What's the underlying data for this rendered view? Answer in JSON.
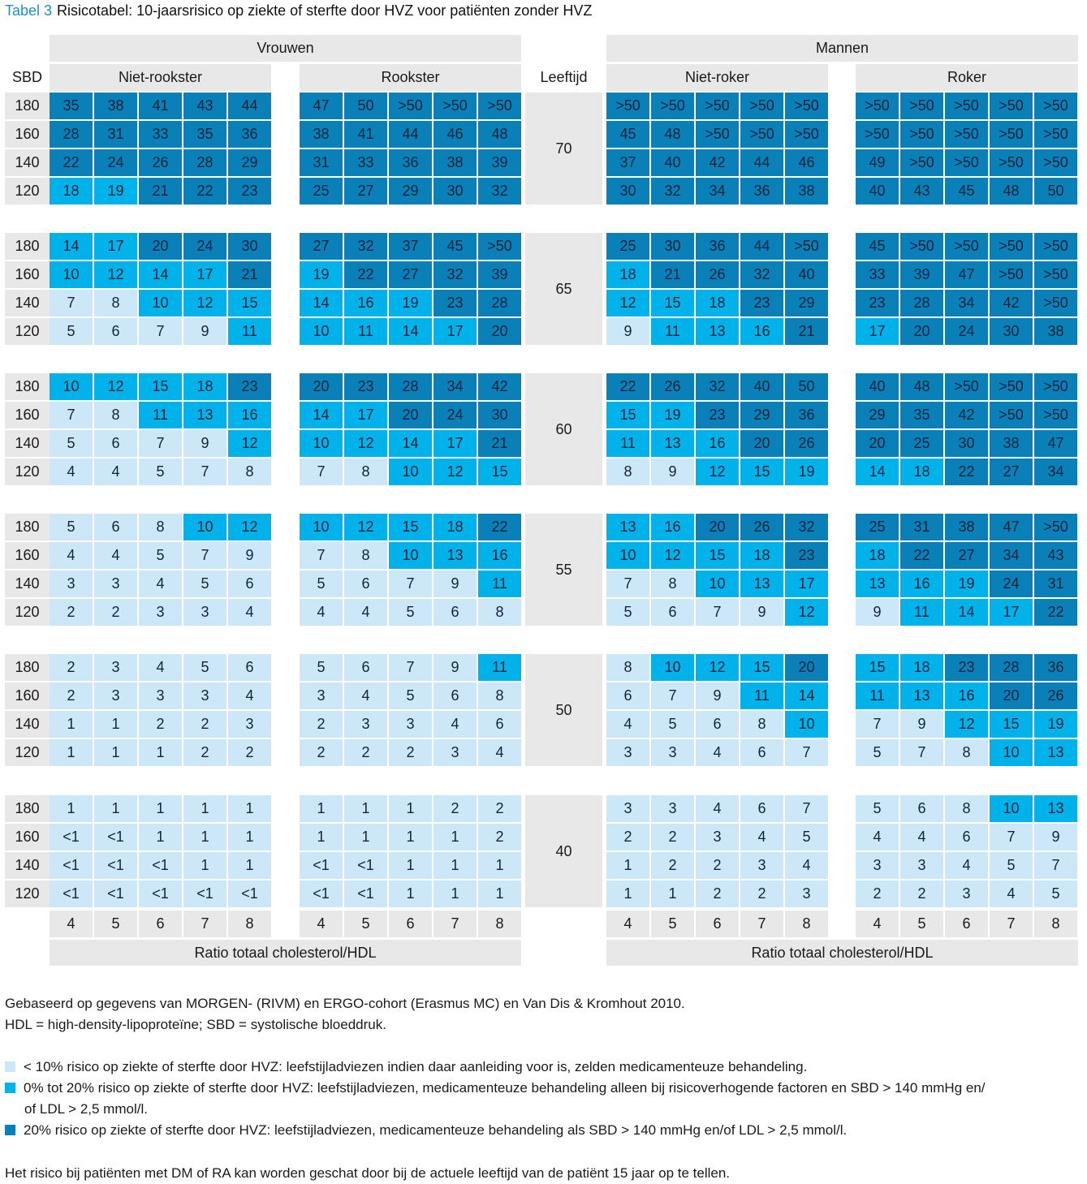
{
  "title": {
    "label": "Tabel 3",
    "text": "Risicotabel: 10-jaarsrisico op ziekte of sterfte door HVZ voor patiënten zonder HVZ"
  },
  "headers": {
    "women": "Vrouwen",
    "men": "Mannen",
    "sbd": "SBD",
    "age": "Leeftijd",
    "women_nonsmoker": "Niet-rookster",
    "women_smoker": "Rookster",
    "men_nonsmoker": "Niet-roker",
    "men_smoker": "Roker",
    "ratio_label_left": "Ratio totaal cholesterol/HDL",
    "ratio_label_right": "Ratio totaal cholesterol/HDL"
  },
  "ratios": [
    "4",
    "5",
    "6",
    "7",
    "8"
  ],
  "sbd_values": [
    "180",
    "160",
    "140",
    "120"
  ],
  "colors": {
    "low": "#cce8f8",
    "mid": "#00b2ea",
    "high": "#0a80b8",
    "header_gray": "#e8e8e8",
    "title_blue": "#1e8fc7"
  },
  "age_blocks": [
    {
      "age": "70",
      "women_nonsmoker": [
        [
          "35",
          "38",
          "41",
          "43",
          "44"
        ],
        [
          "28",
          "31",
          "33",
          "35",
          "36"
        ],
        [
          "22",
          "24",
          "26",
          "28",
          "29"
        ],
        [
          "18",
          "19",
          "21",
          "22",
          "23"
        ]
      ],
      "women_smoker": [
        [
          "47",
          "50",
          ">50",
          ">50",
          ">50"
        ],
        [
          "38",
          "41",
          "44",
          "46",
          "48"
        ],
        [
          "31",
          "33",
          "36",
          "38",
          "39"
        ],
        [
          "25",
          "27",
          "29",
          "30",
          "32"
        ]
      ],
      "men_nonsmoker": [
        [
          ">50",
          ">50",
          ">50",
          ">50",
          ">50"
        ],
        [
          "45",
          "48",
          ">50",
          ">50",
          ">50"
        ],
        [
          "37",
          "40",
          "42",
          "44",
          "46"
        ],
        [
          "30",
          "32",
          "34",
          "36",
          "38"
        ]
      ],
      "men_smoker": [
        [
          ">50",
          ">50",
          ">50",
          ">50",
          ">50"
        ],
        [
          ">50",
          ">50",
          ">50",
          ">50",
          ">50"
        ],
        [
          "49",
          ">50",
          ">50",
          ">50",
          ">50"
        ],
        [
          "40",
          "43",
          "45",
          "48",
          "50"
        ]
      ]
    },
    {
      "age": "65",
      "women_nonsmoker": [
        [
          "14",
          "17",
          "20",
          "24",
          "30"
        ],
        [
          "10",
          "12",
          "14",
          "17",
          "21"
        ],
        [
          "7",
          "8",
          "10",
          "12",
          "15"
        ],
        [
          "5",
          "6",
          "7",
          "9",
          "11"
        ]
      ],
      "women_smoker": [
        [
          "27",
          "32",
          "37",
          "45",
          ">50"
        ],
        [
          "19",
          "22",
          "27",
          "32",
          "39"
        ],
        [
          "14",
          "16",
          "19",
          "23",
          "28"
        ],
        [
          "10",
          "11",
          "14",
          "17",
          "20"
        ]
      ],
      "men_nonsmoker": [
        [
          "25",
          "30",
          "36",
          "44",
          ">50"
        ],
        [
          "18",
          "21",
          "26",
          "32",
          "40"
        ],
        [
          "12",
          "15",
          "18",
          "23",
          "29"
        ],
        [
          "9",
          "11",
          "13",
          "16",
          "21"
        ]
      ],
      "men_smoker": [
        [
          "45",
          ">50",
          ">50",
          ">50",
          ">50"
        ],
        [
          "33",
          "39",
          "47",
          ">50",
          ">50"
        ],
        [
          "23",
          "28",
          "34",
          "42",
          ">50"
        ],
        [
          "17",
          "20",
          "24",
          "30",
          "38"
        ]
      ]
    },
    {
      "age": "60",
      "women_nonsmoker": [
        [
          "10",
          "12",
          "15",
          "18",
          "23"
        ],
        [
          "7",
          "8",
          "11",
          "13",
          "16"
        ],
        [
          "5",
          "6",
          "7",
          "9",
          "12"
        ],
        [
          "4",
          "4",
          "5",
          "7",
          "8"
        ]
      ],
      "women_smoker": [
        [
          "20",
          "23",
          "28",
          "34",
          "42"
        ],
        [
          "14",
          "17",
          "20",
          "24",
          "30"
        ],
        [
          "10",
          "12",
          "14",
          "17",
          "21"
        ],
        [
          "7",
          "8",
          "10",
          "12",
          "15"
        ]
      ],
      "men_nonsmoker": [
        [
          "22",
          "26",
          "32",
          "40",
          "50"
        ],
        [
          "15",
          "19",
          "23",
          "29",
          "36"
        ],
        [
          "11",
          "13",
          "16",
          "20",
          "26"
        ],
        [
          "8",
          "9",
          "12",
          "15",
          "19"
        ]
      ],
      "men_smoker": [
        [
          "40",
          "48",
          ">50",
          ">50",
          ">50"
        ],
        [
          "29",
          "35",
          "42",
          ">50",
          ">50"
        ],
        [
          "20",
          "25",
          "30",
          "38",
          "47"
        ],
        [
          "14",
          "18",
          "22",
          "27",
          "34"
        ]
      ]
    },
    {
      "age": "55",
      "women_nonsmoker": [
        [
          "5",
          "6",
          "8",
          "10",
          "12"
        ],
        [
          "4",
          "4",
          "5",
          "7",
          "9"
        ],
        [
          "3",
          "3",
          "4",
          "5",
          "6"
        ],
        [
          "2",
          "2",
          "3",
          "3",
          "4"
        ]
      ],
      "women_smoker": [
        [
          "10",
          "12",
          "15",
          "18",
          "22"
        ],
        [
          "7",
          "8",
          "10",
          "13",
          "16"
        ],
        [
          "5",
          "6",
          "7",
          "9",
          "11"
        ],
        [
          "4",
          "4",
          "5",
          "6",
          "8"
        ]
      ],
      "men_nonsmoker": [
        [
          "13",
          "16",
          "20",
          "26",
          "32"
        ],
        [
          "10",
          "12",
          "15",
          "18",
          "23"
        ],
        [
          "7",
          "8",
          "10",
          "13",
          "17"
        ],
        [
          "5",
          "6",
          "7",
          "9",
          "12"
        ]
      ],
      "men_smoker": [
        [
          "25",
          "31",
          "38",
          "47",
          ">50"
        ],
        [
          "18",
          "22",
          "27",
          "34",
          "43"
        ],
        [
          "13",
          "16",
          "19",
          "24",
          "31"
        ],
        [
          "9",
          "11",
          "14",
          "17",
          "22"
        ]
      ]
    },
    {
      "age": "50",
      "women_nonsmoker": [
        [
          "2",
          "3",
          "4",
          "5",
          "6"
        ],
        [
          "2",
          "3",
          "3",
          "3",
          "4"
        ],
        [
          "1",
          "1",
          "2",
          "2",
          "3"
        ],
        [
          "1",
          "1",
          "1",
          "2",
          "2"
        ]
      ],
      "women_smoker": [
        [
          "5",
          "6",
          "7",
          "9",
          "11"
        ],
        [
          "3",
          "4",
          "5",
          "6",
          "8"
        ],
        [
          "2",
          "3",
          "3",
          "4",
          "6"
        ],
        [
          "2",
          "2",
          "2",
          "3",
          "4"
        ]
      ],
      "men_nonsmoker": [
        [
          "8",
          "10",
          "12",
          "15",
          "20"
        ],
        [
          "6",
          "7",
          "9",
          "11",
          "14"
        ],
        [
          "4",
          "5",
          "6",
          "8",
          "10"
        ],
        [
          "3",
          "3",
          "4",
          "6",
          "7"
        ]
      ],
      "men_smoker": [
        [
          "15",
          "18",
          "23",
          "28",
          "36"
        ],
        [
          "11",
          "13",
          "16",
          "20",
          "26"
        ],
        [
          "7",
          "9",
          "12",
          "15",
          "19"
        ],
        [
          "5",
          "7",
          "8",
          "10",
          "13"
        ]
      ]
    },
    {
      "age": "40",
      "women_nonsmoker": [
        [
          "1",
          "1",
          "1",
          "1",
          "1"
        ],
        [
          "<1",
          "<1",
          "1",
          "1",
          "1"
        ],
        [
          "<1",
          "<1",
          "<1",
          "1",
          "1"
        ],
        [
          "<1",
          "<1",
          "<1",
          "<1",
          "<1"
        ]
      ],
      "women_smoker": [
        [
          "1",
          "1",
          "1",
          "2",
          "2"
        ],
        [
          "1",
          "1",
          "1",
          "1",
          "2"
        ],
        [
          "<1",
          "<1",
          "1",
          "1",
          "1"
        ],
        [
          "<1",
          "<1",
          "1",
          "1",
          "1"
        ]
      ],
      "men_nonsmoker": [
        [
          "3",
          "3",
          "4",
          "6",
          "7"
        ],
        [
          "2",
          "2",
          "3",
          "4",
          "5"
        ],
        [
          "1",
          "2",
          "2",
          "3",
          "4"
        ],
        [
          "1",
          "1",
          "2",
          "2",
          "3"
        ]
      ],
      "men_smoker": [
        [
          "5",
          "6",
          "8",
          "10",
          "13"
        ],
        [
          "4",
          "4",
          "6",
          "7",
          "9"
        ],
        [
          "3",
          "3",
          "4",
          "5",
          "7"
        ],
        [
          "2",
          "2",
          "3",
          "4",
          "5"
        ]
      ]
    }
  ],
  "footnotes": {
    "source": "Gebaseerd op gegevens van MORGEN- (RIVM) en ERGO-cohort (Erasmus MC) en Van Dis & Kromhout 2010.",
    "abbrev": "HDL = high-density-lipoproteïne; SBD = systolische bloeddruk.",
    "legend_low": "< 10% risico op ziekte of sterfte door HVZ: leefstijladviezen indien daar aanleiding voor is, zelden medicamenteuze behandeling.",
    "legend_mid_line1": "0% tot 20% risico op ziekte of sterfte door HVZ: leefstijladviezen, medicamenteuze behandeling alleen bij risicoverhogende factoren en SBD > 140 mmHg en/",
    "legend_mid_line2": "of LDL > 2,5 mmol/l.",
    "legend_high": "20% risico op ziekte of sterfte door HVZ: leefstijladviezen, medicamenteuze behandeling als SBD > 140 mmHg en/of LDL > 2,5 mmol/l.",
    "dm_ra": "Het risico bij patiënten met DM of RA kan worden geschat door bij de actuele leeftijd van de patiënt 15 jaar op te tellen."
  }
}
